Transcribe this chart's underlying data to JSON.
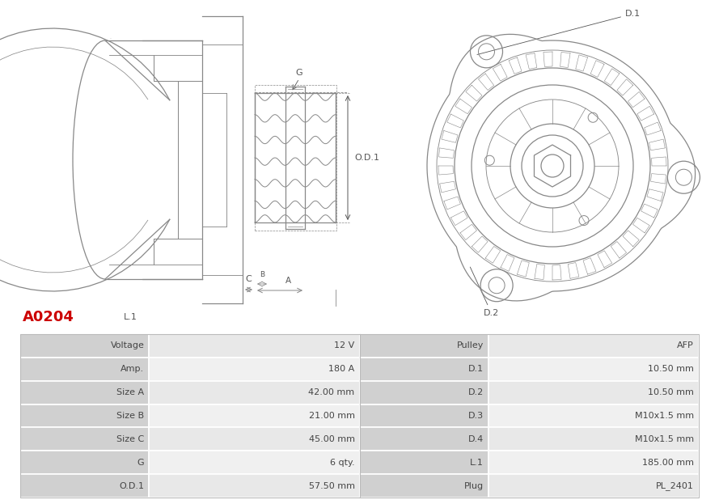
{
  "title": "A0204",
  "title_color": "#cc0000",
  "background_color": "#ffffff",
  "table_label_bg": "#d0d0d0",
  "table_value_bg1": "#e8e8e8",
  "table_value_bg2": "#f0f0f0",
  "table_border_color": "#ffffff",
  "table_data": [
    [
      "Voltage",
      "12 V",
      "Pulley",
      "AFP"
    ],
    [
      "Amp.",
      "180 A",
      "D.1",
      "10.50 mm"
    ],
    [
      "Size A",
      "42.00 mm",
      "D.2",
      "10.50 mm"
    ],
    [
      "Size B",
      "21.00 mm",
      "D.3",
      "M10x1.5 mm"
    ],
    [
      "Size C",
      "45.00 mm",
      "D.4",
      "M10x1.5 mm"
    ],
    [
      "G",
      "6 qty.",
      "L.1",
      "185.00 mm"
    ],
    [
      "O.D.1",
      "57.50 mm",
      "Plug",
      "PL_2401"
    ]
  ],
  "diagram_line_color": "#888888",
  "label_color": "#555555",
  "dim_line_color": "#666666"
}
